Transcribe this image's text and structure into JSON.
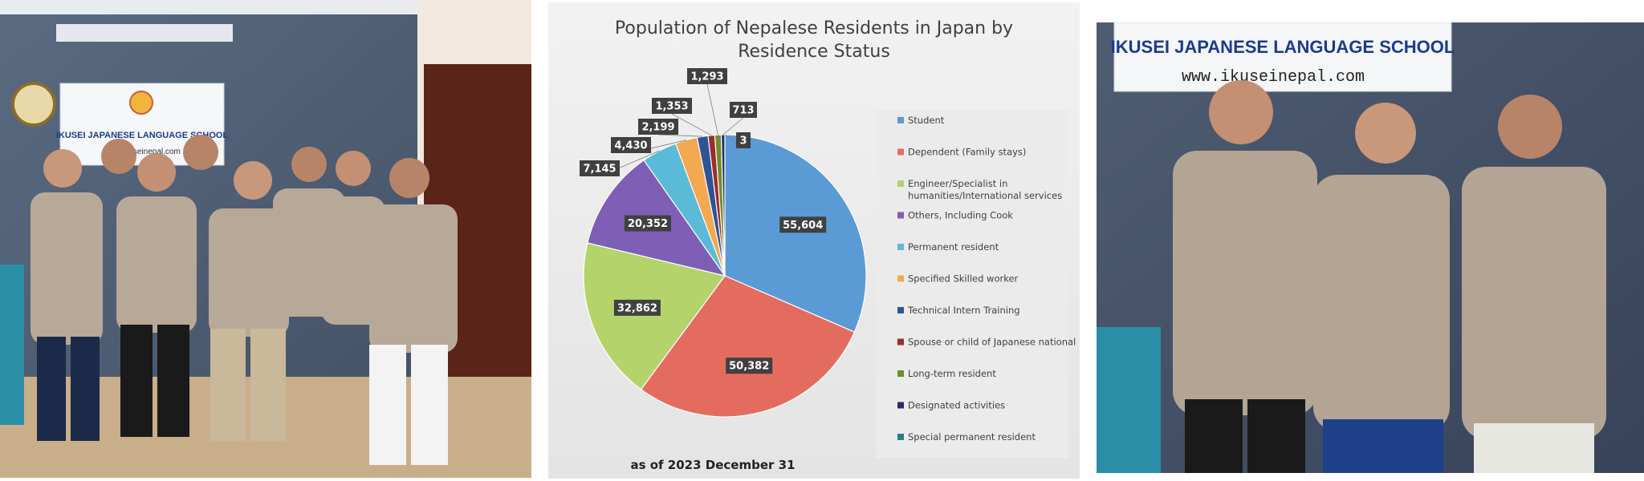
{
  "photos": {
    "left": {
      "sign_text": "IKUSEI JAPANESE LANGUAGE SCHOOL",
      "sign_url": "www.ikuseinepal.com"
    },
    "right": {
      "sign_text": "IKUSEI JAPANESE LANGUAGE SCHOOL",
      "sign_url": "www.ikuseinepal.com"
    }
  },
  "chart_data": {
    "type": "pie",
    "title_line1": "Population of Nepalese Residents in Japan by",
    "title_line2": "Residence Status",
    "note": "as of 2023 December 31",
    "legend_placement": "right",
    "slices": [
      {
        "name": "Student",
        "value": 55604,
        "label": "55,604",
        "color": "#5b9bd5"
      },
      {
        "name": "Dependent (Family stays)",
        "value": 50382,
        "label": "50,382",
        "color": "#e46c5f"
      },
      {
        "name": "Engineer/Specialist in humanities/International services",
        "value": 32862,
        "label": "32,862",
        "color": "#b4d36a"
      },
      {
        "name": "Others, Including Cook",
        "value": 20352,
        "label": "20,352",
        "color": "#7e5fb5"
      },
      {
        "name": "Permanent resident",
        "value": 7145,
        "label": "7,145",
        "color": "#5bbad8"
      },
      {
        "name": "Specified Skilled worker",
        "value": 4430,
        "label": "4,430",
        "color": "#f4a84f"
      },
      {
        "name": "Technical Intern Training",
        "value": 2199,
        "label": "2,199",
        "color": "#2e5496"
      },
      {
        "name": "Spouse or child of Japanese national",
        "value": 1353,
        "label": "1,353",
        "color": "#9b2d2d"
      },
      {
        "name": "Long-term resident",
        "value": 1293,
        "label": "1,293",
        "color": "#6e8e2a"
      },
      {
        "name": "Designated activities",
        "value": 713,
        "label": "713",
        "color": "#2b2a6b"
      },
      {
        "name": "Special permanent resident",
        "value": 3,
        "label": "3",
        "color": "#2d7c8c"
      }
    ]
  }
}
